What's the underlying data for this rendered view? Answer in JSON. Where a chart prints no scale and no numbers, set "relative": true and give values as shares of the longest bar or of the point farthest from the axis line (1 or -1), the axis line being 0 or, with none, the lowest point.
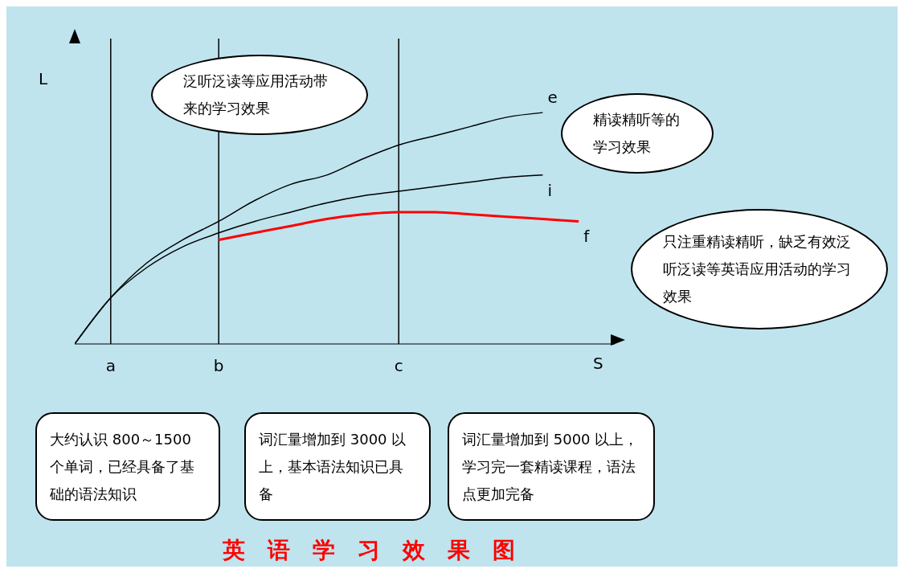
{
  "chart_data": {
    "type": "line",
    "title": "英语学习效果图",
    "xlabel": "S",
    "ylabel": "L",
    "relative": true,
    "categories": [
      null,
      "a",
      null,
      null,
      "b",
      null,
      null,
      null,
      null,
      "c",
      null,
      null,
      null,
      null,
      null
    ],
    "series": [
      {
        "name": "e",
        "color": "#000000",
        "values": [
          0,
          0.2,
          0.35,
          0.45,
          0.53,
          0.62,
          0.69,
          0.73,
          0.8,
          0.86,
          0.9,
          0.94,
          0.98,
          1,
          null
        ]
      },
      {
        "name": "i",
        "color": "#000000",
        "values": [
          0,
          0.2,
          0.33,
          0.42,
          0.48,
          0.53,
          0.57,
          0.61,
          0.64,
          0.66,
          0.68,
          0.7,
          0.72,
          0.73,
          null
        ]
      },
      {
        "name": "f",
        "color": "#ff0000",
        "values": [
          null,
          null,
          null,
          null,
          0.45,
          0.48,
          0.51,
          0.54,
          0.56,
          0.57,
          0.57,
          0.56,
          0.55,
          0.54,
          0.53
        ]
      }
    ],
    "ref_lines": [
      {
        "axis": "x",
        "value": "a",
        "color": "#000000"
      },
      {
        "axis": "x",
        "value": "b",
        "color": "#000000"
      },
      {
        "axis": "x",
        "value": "c",
        "color": "#000000"
      }
    ],
    "annotations": [
      "泛听泛读等应用活动带来的学习效果",
      "精读精听等的学习效果",
      "只注重精读精听，缺乏有效泛听泛读等英语应用活动的学习效果",
      "大约认识 800～1500 个单词，已经具备了基础的语法知识",
      "词汇量增加到 3000 以上，基本语法知识已具备",
      "词汇量增加到 5000 以上，学习完一套精读课程，语法点更加完备"
    ],
    "grid": false,
    "legend": false,
    "marker": "none",
    "line_style": "solid"
  }
}
